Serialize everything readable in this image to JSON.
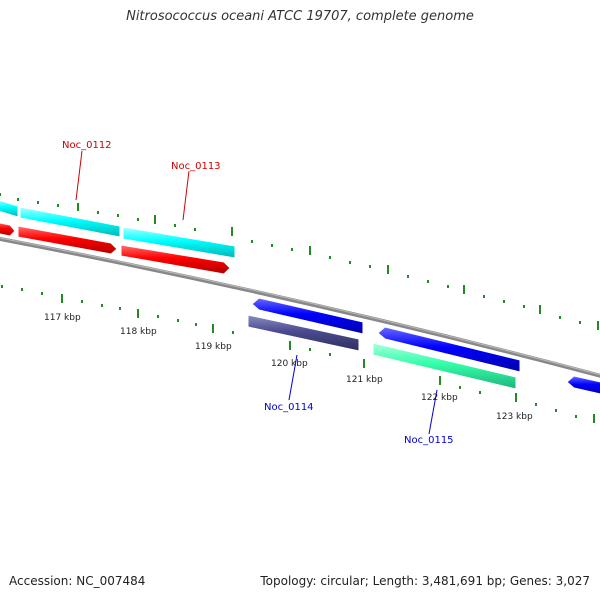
{
  "header": {
    "title": "Nitrosococcus oceani ATCC 19707, complete genome"
  },
  "footer": {
    "accession": "Accession: NC_007484",
    "stats": "Topology: circular; Length: 3,481,691 bp; Genes: 3,027"
  },
  "colors": {
    "backbone": "#888888",
    "tick": "#228B22",
    "cds_forward": "#00FFFF",
    "gene_forward": "#FF0000",
    "cds_reverse": "#0000FF",
    "gene_reverse": "#4B4B8F",
    "rna_reverse": "#33FFAA",
    "label_forward": "#CC0000",
    "label_reverse": "#0000CC"
  },
  "scale_labels": [
    "117 kbp",
    "118 kbp",
    "119 kbp",
    "120 kbp",
    "121 kbp",
    "122 kbp",
    "123 kbp"
  ],
  "gene_labels": {
    "noc_0112": "Noc_0112",
    "noc_0113": "Noc_0113",
    "noc_0114": "Noc_0114",
    "noc_0115": "Noc_0115"
  }
}
